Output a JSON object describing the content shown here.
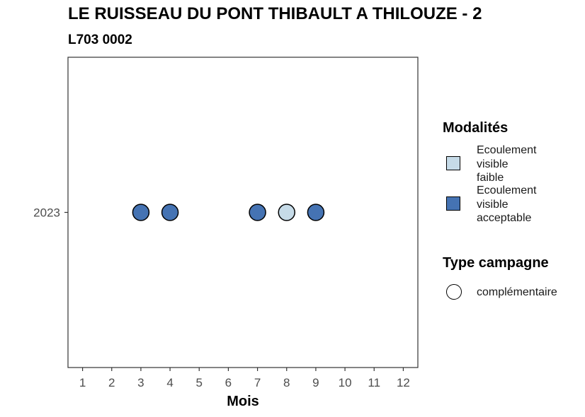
{
  "title": "LE RUISSEAU DU PONT THIBAULT A THILOUZE - 2",
  "subtitle": "L703 0002",
  "legend": {
    "modalites_title": "Modalités",
    "modalites": [
      {
        "label_lines": [
          "Ecoulement",
          "visible",
          "faible"
        ],
        "color": "#c6dbe8"
      },
      {
        "label_lines": [
          "Ecoulement",
          "visible",
          "acceptable"
        ],
        "color": "#4573b3"
      }
    ],
    "campagne_title": "Type campagne",
    "campagne": [
      {
        "label": "complémentaire",
        "shape": "circle-outline"
      }
    ]
  },
  "chart_data": {
    "type": "scatter",
    "title": "LE RUISSEAU DU PONT THIBAULT A THILOUZE - 2",
    "subtitle": "L703 0002",
    "xlabel": "Mois",
    "ylabel": "",
    "x_ticks": [
      1,
      2,
      3,
      4,
      5,
      6,
      7,
      8,
      9,
      10,
      11,
      12
    ],
    "x_range": [
      0.5,
      12.5
    ],
    "y_categories": [
      "2023"
    ],
    "points": [
      {
        "x": 3,
        "y": "2023",
        "modalite": "Ecoulement visible acceptable",
        "campagne": "complémentaire"
      },
      {
        "x": 4,
        "y": "2023",
        "modalite": "Ecoulement visible acceptable",
        "campagne": "complémentaire"
      },
      {
        "x": 7,
        "y": "2023",
        "modalite": "Ecoulement visible acceptable",
        "campagne": "complémentaire"
      },
      {
        "x": 8,
        "y": "2023",
        "modalite": "Ecoulement visible faible",
        "campagne": "complémentaire"
      },
      {
        "x": 9,
        "y": "2023",
        "modalite": "Ecoulement visible acceptable",
        "campagne": "complémentaire"
      }
    ],
    "colors": {
      "Ecoulement visible faible": "#c6dbe8",
      "Ecoulement visible acceptable": "#4573b3"
    },
    "grid": false,
    "legend_position": "right"
  }
}
